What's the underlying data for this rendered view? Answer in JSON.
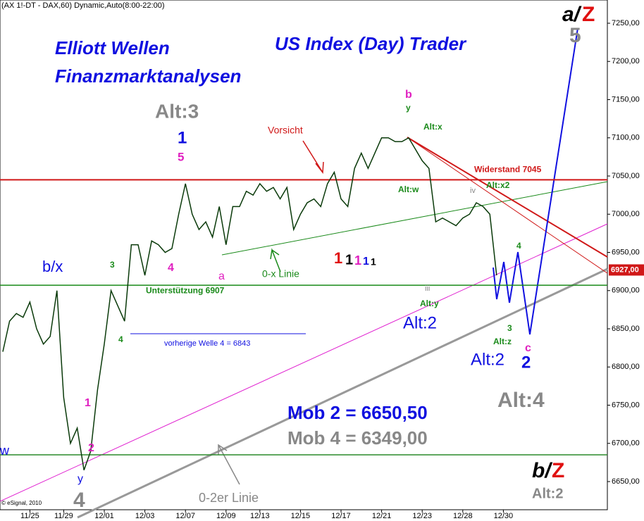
{
  "chart_data": {
    "type": "line",
    "title": "(AX 1!-DT - DAX,60) Dynamic,Auto(8:00-22:00)",
    "categories": [
      null,
      null,
      null,
      null,
      "11/25",
      null,
      null,
      null,
      null,
      "11/29",
      null,
      null,
      null,
      null,
      null,
      "12/01",
      null,
      null,
      null,
      null,
      null,
      "12/03",
      null,
      null,
      null,
      null,
      null,
      "12/07",
      null,
      null,
      null,
      null,
      null,
      "12/09",
      null,
      null,
      null,
      null,
      "12/13",
      null,
      null,
      null,
      null,
      null,
      "12/15",
      null,
      null,
      null,
      null,
      null,
      "12/17",
      null,
      null,
      null,
      null,
      null,
      "12/21",
      null,
      null,
      null,
      null,
      null,
      "12/23",
      null,
      null,
      null,
      null,
      null,
      "12/28",
      null,
      null,
      null,
      null,
      null,
      "12/30",
      null,
      null,
      null,
      null,
      null,
      null,
      null,
      null,
      null,
      null,
      null,
      null,
      null,
      null,
      null
    ],
    "values": [
      6820,
      6860,
      6870,
      6865,
      6885,
      6850,
      6830,
      6840,
      6900,
      6760,
      6700,
      6720,
      6665,
      6690,
      6770,
      6830,
      6900,
      6880,
      6860,
      6960,
      6960,
      6920,
      6965,
      6960,
      6950,
      6955,
      7000,
      7040,
      7000,
      6980,
      6990,
      6970,
      7010,
      6960,
      7010,
      7010,
      7030,
      7025,
      7040,
      7030,
      7035,
      7020,
      7035,
      6980,
      7000,
      7015,
      7020,
      7010,
      7040,
      7055,
      7020,
      7010,
      7060,
      7080,
      7060,
      7080,
      7100,
      7100,
      7095,
      7095,
      7100,
      7085,
      7070,
      7060,
      6990,
      6995,
      6990,
      6985,
      6995,
      7000,
      7015,
      7010,
      7000,
      6920,
      null,
      null,
      null,
      null,
      null,
      null,
      null,
      null,
      null,
      null,
      null,
      null,
      null,
      null,
      null,
      null
    ],
    "color": "#0a3a0a",
    "ylim": [
      6625,
      7275
    ],
    "yticks": [
      {
        "value": 6650,
        "label": "6650,00"
      },
      {
        "value": 6700,
        "label": "6700,00"
      },
      {
        "value": 6750,
        "label": "6750,00"
      },
      {
        "value": 6800,
        "label": "6800,00"
      },
      {
        "value": 6850,
        "label": "6850,00"
      },
      {
        "value": 6900,
        "label": "6900,00"
      },
      {
        "value": 6950,
        "label": "6950,00"
      },
      {
        "value": 7000,
        "label": "7000,00"
      },
      {
        "value": 7050,
        "label": "7050,00"
      },
      {
        "value": 7100,
        "label": "7100,00"
      },
      {
        "value": 7150,
        "label": "7150,00"
      },
      {
        "value": 7200,
        "label": "7200,00"
      },
      {
        "value": 7250,
        "label": "7250,00"
      }
    ],
    "levels": [
      {
        "label": "Widerstand 7045",
        "value": 7045,
        "color": "#d01818"
      },
      {
        "label": "Unterstützung 6907",
        "value": 6907,
        "color": "#1a8a1a"
      },
      {
        "value": 6685,
        "color": "#2a8a2a"
      }
    ],
    "last_price": {
      "value": 6927,
      "label": "6927,00",
      "color": "#d01818"
    },
    "annotations": [
      {
        "text": "Elliott Wellen",
        "color": "#1010e0"
      },
      {
        "text": "Finanzmarktanalysen",
        "color": "#1010e0"
      },
      {
        "text": "US Index (Day) Trader",
        "color": "#1010e0"
      },
      {
        "text": "Alt:3",
        "color": "#888888"
      },
      {
        "text": "1",
        "color": "#1010e0"
      },
      {
        "text": "5",
        "color": "#e020c0"
      },
      {
        "text": "Vorsicht",
        "color": "#d01818"
      },
      {
        "text": "b",
        "color": "#e020c0"
      },
      {
        "text": "y",
        "color": "#1a8a1a"
      },
      {
        "text": "Alt:x",
        "color": "#1a8a1a"
      },
      {
        "text": "Alt:w",
        "color": "#1a8a1a"
      },
      {
        "text": "Alt:x2",
        "color": "#1a8a1a"
      },
      {
        "text": "b/x",
        "color": "#1010e0"
      },
      {
        "text": "0-x Linie",
        "color": "#1a8a1a"
      },
      {
        "text": "vorherige Welle 4 = 6843",
        "color": "#1010e0"
      },
      {
        "text": "Alt:y",
        "color": "#1a8a1a"
      },
      {
        "text": "Alt:2",
        "color": "#1010e0"
      },
      {
        "text": "Alt:2",
        "color": "#1010e0"
      },
      {
        "text": "2",
        "color": "#1010e0"
      },
      {
        "text": "c",
        "color": "#e020c0"
      },
      {
        "text": "Alt:z",
        "color": "#1a8a1a"
      },
      {
        "text": "Alt:4",
        "color": "#888888"
      },
      {
        "text": "Mob 2 = 6650,50",
        "color": "#1010e0"
      },
      {
        "text": "Mob 4 = 6349,00",
        "color": "#888888"
      },
      {
        "text": "a/",
        "color": "#000000"
      },
      {
        "text": "Z",
        "color": "#e01010"
      },
      {
        "text": "5",
        "color": "#888888"
      },
      {
        "text": "b/",
        "color": "#000000"
      },
      {
        "text": "Z",
        "color": "#e01010"
      },
      {
        "text": "Alt:2",
        "color": "#888888"
      },
      {
        "text": "0-2er Linie",
        "color": "#888888"
      },
      {
        "text": "4",
        "color": "#888888"
      },
      {
        "text": "y",
        "color": "#1010e0"
      },
      {
        "text": "w",
        "color": "#1010e0"
      },
      {
        "text": "a",
        "color": "#e020c0"
      },
      {
        "text": "1",
        "color": "#e01010"
      },
      {
        "text": "1",
        "color": "#000000"
      },
      {
        "text": "1",
        "color": "#e020c0"
      },
      {
        "text": "1",
        "color": "#1010e0"
      },
      {
        "text": "1",
        "color": "#000000"
      },
      {
        "text": "iii",
        "color": "#888888"
      },
      {
        "text": "iv",
        "color": "#888888"
      },
      {
        "text": "4",
        "color": "#e020c0"
      },
      {
        "text": "3",
        "color": "#1a8a1a"
      },
      {
        "text": "4",
        "color": "#1a8a1a"
      },
      {
        "text": "1",
        "color": "#e020c0"
      },
      {
        "text": "2",
        "color": "#e020c0"
      },
      {
        "text": "4",
        "color": "#1a8a1a"
      },
      {
        "text": "3",
        "color": "#1a8a1a"
      },
      {
        "text": "© eSignal, 2010",
        "color": "#000000"
      }
    ]
  }
}
